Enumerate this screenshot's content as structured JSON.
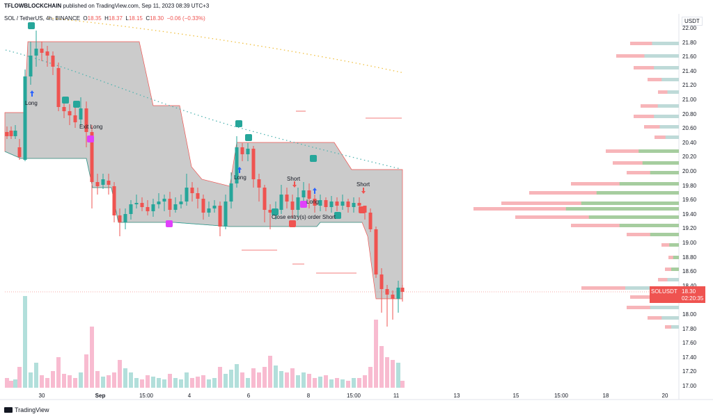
{
  "header": {
    "author": "TFLOWBLOCKCHAIN",
    "published": "published on TradingView.com, Sep 11, 2023 08:39 UTC+3"
  },
  "legend": {
    "symbol": "SOL / TetherUS, 4h, BINANCE",
    "o_label": "O",
    "o_value": "18.35",
    "h_label": "H",
    "h_value": "18.37",
    "l_label": "L",
    "l_value": "18.15",
    "c_label": "C",
    "c_value": "18.30",
    "change": "−0.06 (−0.33%)"
  },
  "price_axis": {
    "unit": "USDT",
    "ticks": [
      "22.00",
      "21.80",
      "21.60",
      "21.40",
      "21.20",
      "21.00",
      "20.80",
      "20.60",
      "20.40",
      "20.20",
      "20.00",
      "19.80",
      "19.60",
      "19.40",
      "19.20",
      "19.00",
      "18.80",
      "18.60",
      "18.40",
      "18.20",
      "18.00",
      "17.80",
      "17.60",
      "17.40",
      "17.20",
      "17.00"
    ]
  },
  "price_tag": {
    "symbol": "SOLUSDT",
    "price": "18.30",
    "countdown": "02:20:35"
  },
  "time_axis": [
    {
      "label": "30",
      "bold": false
    },
    {
      "label": "Sep",
      "bold": true
    },
    {
      "label": "15:00",
      "bold": false
    },
    {
      "label": "4",
      "bold": false
    },
    {
      "label": "6",
      "bold": false
    },
    {
      "label": "8",
      "bold": false
    },
    {
      "label": "15:00",
      "bold": false
    },
    {
      "label": "11",
      "bold": false
    },
    {
      "label": "13",
      "bold": false
    },
    {
      "label": "15",
      "bold": false
    },
    {
      "label": "15:00",
      "bold": false
    },
    {
      "label": "18",
      "bold": false
    },
    {
      "label": "20",
      "bold": false
    }
  ],
  "signals": [
    "Long",
    "Exit Long",
    "Long",
    "Short",
    "Long",
    "Close entry(s) order Short",
    "Short"
  ],
  "footer": {
    "brand": "TradingView"
  },
  "colors": {
    "up": "#26a69a",
    "down": "#ef5350",
    "band": "#c2c2c2",
    "vol_up": "#b2dfdb",
    "vol_down": "#f8bbd0"
  }
}
